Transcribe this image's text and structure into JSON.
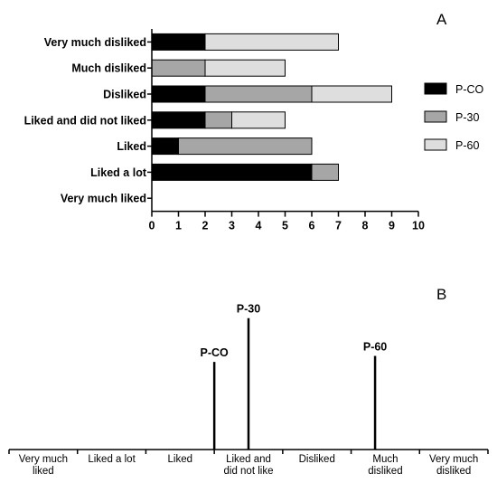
{
  "chart_data": [
    {
      "panel": "A",
      "type": "bar",
      "orientation": "horizontal",
      "stacked": true,
      "categories": [
        "Very much disliked",
        "Much disliked",
        "Disliked",
        "Liked and did not liked",
        "Liked",
        "Liked a lot",
        "Very much liked"
      ],
      "series": [
        {
          "name": "P-CO",
          "color": "#000000",
          "values": [
            2,
            0,
            2,
            2,
            1,
            6,
            0
          ]
        },
        {
          "name": "P-30",
          "color": "#a6a6a6",
          "values": [
            0,
            2,
            4,
            1,
            5,
            1,
            0
          ]
        },
        {
          "name": "P-60",
          "color": "#dedede",
          "values": [
            5,
            3,
            3,
            2,
            0,
            0,
            0
          ]
        }
      ],
      "xlim": [
        0,
        10
      ],
      "xticks": [
        "0",
        "1",
        "2",
        "3",
        "4",
        "5",
        "6",
        "7",
        "8",
        "9",
        "10"
      ],
      "legend_position": "right",
      "grid": false
    },
    {
      "panel": "B",
      "type": "scale",
      "categories": [
        "Very much liked",
        "Liked a lot",
        "Liked",
        "Liked and did not like",
        "Disliked",
        "Much disliked",
        "Very much disliked"
      ],
      "category_lines": [
        [
          "Very much",
          "liked"
        ],
        [
          "Liked a lot"
        ],
        [
          "Liked"
        ],
        [
          "Liked and",
          "did not like"
        ],
        [
          "Disliked"
        ],
        [
          "Much",
          "disliked"
        ],
        [
          "Very much",
          "disliked"
        ]
      ],
      "markers": [
        {
          "label": "P-CO",
          "position": 3.0,
          "height": 0.58
        },
        {
          "label": "P-30",
          "position": 3.5,
          "height": 0.87
        },
        {
          "label": "P-60",
          "position": 5.35,
          "height": 0.62
        }
      ]
    }
  ],
  "panels": {
    "a_letter": "A",
    "b_letter": "B"
  }
}
